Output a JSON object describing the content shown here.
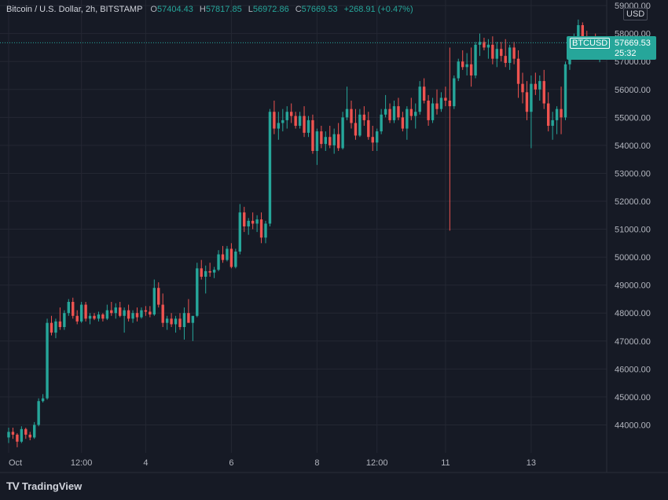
{
  "legend": {
    "symbol": "Bitcoin / U.S. Dollar, 2h, BITSTAMP",
    "o_label": "O",
    "o": "57404.43",
    "h_label": "H",
    "h": "57817.85",
    "l_label": "L",
    "l": "56972.86",
    "c_label": "C",
    "c": "57669.53",
    "change": "+268.91 (+0.47%)"
  },
  "currency": "USD",
  "last_price": {
    "symbol": "BTCUSD",
    "price": "57669.53",
    "countdown": "25:32"
  },
  "brand": "TradingView",
  "colors": {
    "background": "#161a25",
    "up": "#26a69a",
    "down": "#ef5350",
    "grid": "#242733",
    "text": "#b2b5be"
  },
  "chart_data": {
    "type": "candlestick",
    "y_ticks": [
      "44000.00",
      "45000.00",
      "46000.00",
      "47000.00",
      "48000.00",
      "49000.00",
      "50000.00",
      "51000.00",
      "52000.00",
      "53000.00",
      "54000.00",
      "55000.00",
      "56000.00",
      "57000.00",
      "58000.00",
      "59000.00"
    ],
    "ylim": [
      43000,
      59200
    ],
    "x_ticks": [
      {
        "label": "Oct",
        "i": 0
      },
      {
        "label": "12:00",
        "i": 17
      },
      {
        "label": "4",
        "i": 32
      },
      {
        "label": "6",
        "i": 52
      },
      {
        "label": "8",
        "i": 72
      },
      {
        "label": "12:00",
        "i": 86
      },
      {
        "label": "11",
        "i": 102
      },
      {
        "label": "13",
        "i": 122
      }
    ],
    "candles": [
      [
        43550,
        43900,
        43350,
        43750
      ],
      [
        43750,
        43900,
        43500,
        43650
      ],
      [
        43650,
        43700,
        43200,
        43400
      ],
      [
        43400,
        43950,
        43350,
        43850
      ],
      [
        43850,
        43900,
        43500,
        43650
      ],
      [
        43650,
        43750,
        43450,
        43550
      ],
      [
        43550,
        44100,
        43500,
        44000
      ],
      [
        44000,
        44950,
        43950,
        44850
      ],
      [
        44850,
        45100,
        44800,
        44950
      ],
      [
        44950,
        47800,
        44900,
        47650
      ],
      [
        47650,
        47900,
        47200,
        47300
      ],
      [
        47300,
        47800,
        47100,
        47700
      ],
      [
        47700,
        48200,
        47400,
        47500
      ],
      [
        47500,
        48100,
        47400,
        48000
      ],
      [
        48000,
        48500,
        47900,
        48400
      ],
      [
        48400,
        48550,
        47800,
        47900
      ],
      [
        47900,
        48100,
        47600,
        47700
      ],
      [
        47700,
        48400,
        47650,
        48300
      ],
      [
        48300,
        48400,
        47700,
        47800
      ],
      [
        47800,
        48000,
        47600,
        47900
      ],
      [
        47900,
        48000,
        47750,
        47800
      ],
      [
        47800,
        48050,
        47700,
        47950
      ],
      [
        47950,
        48000,
        47700,
        47800
      ],
      [
        47800,
        48300,
        47750,
        48100
      ],
      [
        48100,
        48400,
        47900,
        48000
      ],
      [
        48000,
        48350,
        47800,
        48200
      ],
      [
        48200,
        48400,
        47850,
        47900
      ],
      [
        47900,
        48200,
        47300,
        48100
      ],
      [
        48100,
        48300,
        47700,
        47800
      ],
      [
        47800,
        48100,
        47650,
        48000
      ],
      [
        48000,
        48200,
        47700,
        47850
      ],
      [
        47850,
        48200,
        47800,
        48100
      ],
      [
        48100,
        48250,
        47900,
        48050
      ],
      [
        48050,
        48250,
        47850,
        47950
      ],
      [
        47950,
        49200,
        47900,
        48900
      ],
      [
        48900,
        49100,
        48200,
        48300
      ],
      [
        48300,
        48700,
        47500,
        47650
      ],
      [
        47650,
        47900,
        47400,
        47800
      ],
      [
        47800,
        48000,
        47500,
        47600
      ],
      [
        47600,
        47900,
        47300,
        47800
      ],
      [
        47800,
        48000,
        47400,
        47500
      ],
      [
        47500,
        48200,
        47050,
        48000
      ],
      [
        48000,
        48500,
        47800,
        47650
      ],
      [
        47650,
        47800,
        47000,
        47900
      ],
      [
        47900,
        49800,
        47850,
        49600
      ],
      [
        49600,
        49900,
        49200,
        49300
      ],
      [
        49300,
        49700,
        48700,
        49500
      ],
      [
        49500,
        49800,
        49300,
        49450
      ],
      [
        49450,
        49650,
        49250,
        49550
      ],
      [
        49550,
        50250,
        49500,
        50100
      ],
      [
        50100,
        50400,
        49800,
        49900
      ],
      [
        49900,
        50400,
        49850,
        50300
      ],
      [
        50300,
        50500,
        49600,
        49650
      ],
      [
        49650,
        50300,
        49600,
        50200
      ],
      [
        50200,
        51900,
        50100,
        51600
      ],
      [
        51600,
        51800,
        50900,
        51100
      ],
      [
        51100,
        51400,
        50800,
        51300
      ],
      [
        51300,
        51600,
        51000,
        51200
      ],
      [
        51200,
        51500,
        50900,
        51350
      ],
      [
        51350,
        51600,
        50500,
        50700
      ],
      [
        50700,
        51300,
        50500,
        51200
      ],
      [
        51200,
        55300,
        51100,
        55200
      ],
      [
        55200,
        55600,
        54400,
        54600
      ],
      [
        54600,
        55200,
        54200,
        54800
      ],
      [
        54800,
        55300,
        54500,
        54900
      ],
      [
        54900,
        55400,
        54600,
        55200
      ],
      [
        55200,
        55500,
        54800,
        55050
      ],
      [
        55050,
        55200,
        54600,
        54700
      ],
      [
        54700,
        55200,
        54600,
        55050
      ],
      [
        55050,
        55400,
        54300,
        54450
      ],
      [
        54450,
        55050,
        54300,
        54900
      ],
      [
        54900,
        55100,
        53700,
        53800
      ],
      [
        53800,
        54600,
        53300,
        54500
      ],
      [
        54500,
        54700,
        53900,
        54050
      ],
      [
        54050,
        54500,
        53800,
        54300
      ],
      [
        54300,
        54700,
        53900,
        54000
      ],
      [
        54000,
        54600,
        53700,
        54400
      ],
      [
        54400,
        54800,
        53800,
        53900
      ],
      [
        53900,
        55200,
        53850,
        55000
      ],
      [
        55000,
        56100,
        54900,
        55300
      ],
      [
        55300,
        55600,
        54600,
        54800
      ],
      [
        54800,
        55300,
        54200,
        54350
      ],
      [
        54350,
        55300,
        54300,
        55100
      ],
      [
        55100,
        55400,
        54700,
        54900
      ],
      [
        54900,
        55200,
        54200,
        54300
      ],
      [
        54300,
        54700,
        53800,
        54100
      ],
      [
        54100,
        54600,
        53800,
        54500
      ],
      [
        54500,
        55300,
        54400,
        55100
      ],
      [
        55100,
        55800,
        55000,
        55300
      ],
      [
        55300,
        55500,
        54800,
        54900
      ],
      [
        54900,
        55600,
        54800,
        55400
      ],
      [
        55400,
        55700,
        54900,
        55000
      ],
      [
        55000,
        55200,
        54500,
        54600
      ],
      [
        54600,
        55400,
        54200,
        55300
      ],
      [
        55300,
        55700,
        54900,
        55050
      ],
      [
        55050,
        55500,
        54600,
        55200
      ],
      [
        55200,
        56300,
        55100,
        56100
      ],
      [
        56100,
        56400,
        55500,
        55600
      ],
      [
        55600,
        55800,
        54700,
        54900
      ],
      [
        54900,
        55700,
        54800,
        55500
      ],
      [
        55500,
        56000,
        55100,
        55300
      ],
      [
        55300,
        55900,
        55200,
        55700
      ],
      [
        55700,
        56100,
        55400,
        55600
      ],
      [
        55600,
        57500,
        50950,
        55400
      ],
      [
        55400,
        56500,
        55300,
        56400
      ],
      [
        56400,
        57100,
        56300,
        57000
      ],
      [
        57000,
        57400,
        56700,
        56800
      ],
      [
        56800,
        57300,
        56500,
        56900
      ],
      [
        56900,
        57500,
        56100,
        56500
      ],
      [
        56500,
        57700,
        56400,
        57600
      ],
      [
        57600,
        58000,
        57200,
        57700
      ],
      [
        57700,
        57850,
        57400,
        57500
      ],
      [
        57500,
        57800,
        57100,
        57600
      ],
      [
        57600,
        57900,
        56900,
        57100
      ],
      [
        57100,
        57700,
        56800,
        57450
      ],
      [
        57450,
        57700,
        57000,
        57200
      ],
      [
        57200,
        57800,
        56800,
        56950
      ],
      [
        56950,
        57600,
        56700,
        57500
      ],
      [
        57500,
        57700,
        56900,
        57100
      ],
      [
        57100,
        57400,
        55700,
        56200
      ],
      [
        56200,
        56600,
        55500,
        55900
      ],
      [
        55900,
        56300,
        54900,
        55200
      ],
      [
        55200,
        56500,
        53900,
        56200
      ],
      [
        56200,
        56600,
        55800,
        56000
      ],
      [
        56000,
        56500,
        55600,
        56300
      ],
      [
        56300,
        56700,
        55300,
        55500
      ],
      [
        55500,
        55900,
        54500,
        54700
      ],
      [
        54700,
        55200,
        54200,
        54900
      ],
      [
        54900,
        55400,
        54400,
        55300
      ],
      [
        55300,
        56100,
        54400,
        55000
      ],
      [
        55000,
        57000,
        54900,
        56900
      ],
      [
        56900,
        57800,
        56700,
        57600
      ],
      [
        57600,
        58000,
        57300,
        57700
      ],
      [
        57700,
        58500,
        57500,
        58300
      ],
      [
        58300,
        58400,
        57700,
        57800
      ],
      [
        57800,
        58100,
        57300,
        57500
      ],
      [
        57500,
        57900,
        57200,
        57800
      ],
      [
        57800,
        58000,
        57300,
        57400
      ],
      [
        57400,
        57817.85,
        56972.86,
        57669.53
      ]
    ]
  }
}
